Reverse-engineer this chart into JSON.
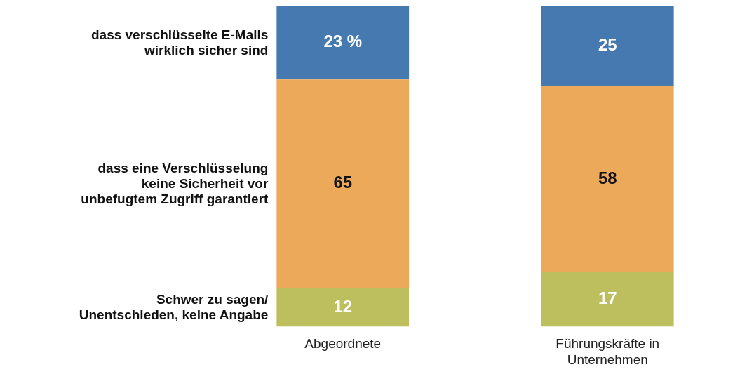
{
  "chart_data": {
    "type": "bar",
    "stacked": true,
    "categories": [
      "Abgeordnete",
      "Führungskräfte in Unternehmen"
    ],
    "ylim": [
      0,
      100
    ],
    "grid": false,
    "legend": false,
    "series": [
      {
        "name": "Schwer zu sagen/ Unentschieden, keine Angabe",
        "color": "#bdbf5e",
        "values": [
          12,
          17
        ],
        "value_labels": [
          "12",
          "17"
        ]
      },
      {
        "name": "dass eine Verschlüsselung keine Sicherheit vor unbefugtem Zugriff garantiert",
        "color": "#eca95a",
        "values": [
          65,
          58
        ],
        "value_labels": [
          "65",
          "58"
        ]
      },
      {
        "name": "dass verschlüsselte E-Mails wirklich sicher sind",
        "color": "#4679b0",
        "values": [
          23,
          25
        ],
        "value_labels": [
          "23 %",
          "25"
        ]
      }
    ]
  }
}
